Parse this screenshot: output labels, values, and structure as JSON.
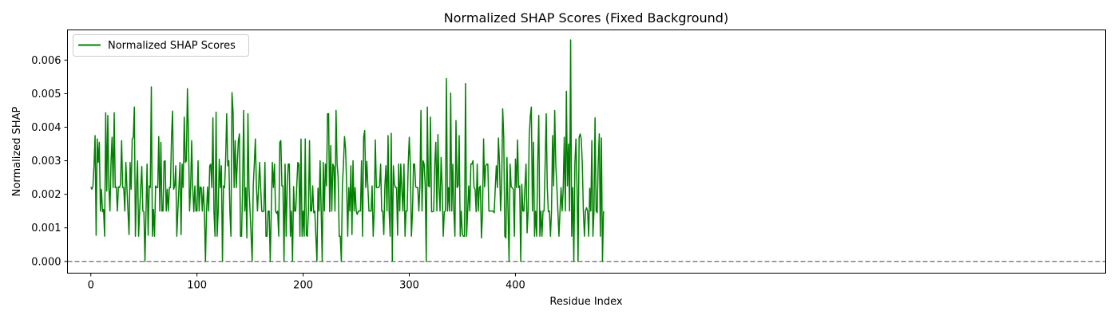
{
  "chart_data": {
    "type": "line",
    "title": "Normalized SHAP Scores (Fixed Background)",
    "xlabel": "Residue Index",
    "ylabel": "Normalized SHAP",
    "xlim": [
      -22,
      956
    ],
    "ylim": [
      -0.00035,
      0.0069
    ],
    "xticks": [
      0,
      100,
      200,
      300,
      400
    ],
    "xtick_labels": [
      "0",
      "100",
      "200",
      "300",
      "400"
    ],
    "yticks": [
      0.0,
      0.001,
      0.002,
      0.003,
      0.004,
      0.005,
      0.006
    ],
    "ytick_labels": [
      "0.000",
      "0.001",
      "0.002",
      "0.003",
      "0.004",
      "0.005",
      "0.006"
    ],
    "grid": false,
    "legend": {
      "position": "top-left",
      "entries": [
        "Normalized SHAP Scores"
      ]
    },
    "reference_line": {
      "y": 0.0,
      "style": "dashed",
      "color": "#808080"
    },
    "series": [
      {
        "name": "Normalized SHAP Scores",
        "color": "#008000",
        "x_start": 0,
        "values": [
          0.00222,
          0.00215,
          0.00225,
          0.00285,
          0.00375,
          0.00078,
          0.00365,
          0.00295,
          0.00355,
          0.0015,
          0.00215,
          0.00148,
          0.00155,
          0.00075,
          0.00443,
          0.0021,
          0.00435,
          0.00222,
          0.0015,
          0.00295,
          0.0037,
          0.0022,
          0.00443,
          0.0022,
          0.00222,
          0.0015,
          0.00222,
          0.0022,
          0.0023,
          0.0036,
          0.0022,
          0.0022,
          0.0015,
          0.00295,
          0.0022,
          0.0015,
          0.0008,
          0.00295,
          0.00215,
          0.00365,
          0.0037,
          0.0046,
          0.00075,
          0.0022,
          0.003,
          0.00075,
          0.0015,
          0.0022,
          0.00283,
          0.0015,
          0.00148,
          0.0,
          0.0015,
          0.0029,
          0.00078,
          0.00225,
          0.0022,
          0.0052,
          0.00075,
          0.00155,
          0.00075,
          0.00225,
          0.0022,
          0.0022,
          0.00372,
          0.0015,
          0.00355,
          0.0015,
          0.0015,
          0.00298,
          0.003,
          0.0015,
          0.00215,
          0.0015,
          0.0022,
          0.0022,
          0.0037,
          0.00448,
          0.00215,
          0.00225,
          0.00285,
          0.00075,
          0.0015,
          0.0022,
          0.00295,
          0.0008,
          0.0029,
          0.0022,
          0.0043,
          0.00295,
          0.003,
          0.00515,
          0.0037,
          0.0015,
          0.0022,
          0.0036,
          0.0022,
          0.00148,
          0.00225,
          0.0015,
          0.0015,
          0.003,
          0.0015,
          0.00222,
          0.0022,
          0.0015,
          0.00222,
          0.0015,
          0.0,
          0.0015,
          0.00222,
          0.0015,
          0.00285,
          0.0029,
          0.0022,
          0.00428,
          0.00148,
          0.00075,
          0.00445,
          0.00075,
          0.0015,
          0.00305,
          0.0022,
          0.00285,
          0.0,
          0.00225,
          0.0022,
          0.00305,
          0.0044,
          0.00285,
          0.003,
          0.0015,
          0.00075,
          0.00503,
          0.00445,
          0.0022,
          0.0036,
          0.0022,
          0.00295,
          0.0036,
          0.0038,
          0.00075,
          0.00075,
          0.00225,
          0.0045,
          0.0015,
          0.0022,
          0.0007,
          0.0044,
          0.0022,
          0.0015,
          0.00078,
          0.0,
          0.00225,
          0.0029,
          0.00365,
          0.00222,
          0.0015,
          0.0022,
          0.00295,
          0.0022,
          0.0015,
          0.00148,
          0.0015,
          0.00295,
          0.00075,
          0.00075,
          0.0015,
          0.0015,
          0.0,
          0.0015,
          0.00295,
          0.0022,
          0.0029,
          0.0015,
          0.00143,
          0.0015,
          0.00075,
          0.00355,
          0.0036,
          0.00225,
          0.00225,
          0.0,
          0.0029,
          0.00075,
          0.00225,
          0.0029,
          0.0029,
          0.00075,
          0.0015,
          0.0,
          0.00223,
          0.0015,
          0.0015,
          0.00225,
          0.00295,
          0.0029,
          0.00075,
          0.00365,
          0.00075,
          0.0015,
          0.00075,
          0.00365,
          0.00078,
          0.00075,
          0.0015,
          0.0036,
          0.0015,
          0.0015,
          0.00225,
          0.00145,
          0.0015,
          0.00075,
          0.0,
          0.00218,
          0.0015,
          0.003,
          0.0015,
          0.0,
          0.00295,
          0.0015,
          0.0029,
          0.00225,
          0.0044,
          0.0044,
          0.00148,
          0.00345,
          0.0015,
          0.0029,
          0.00282,
          0.0015,
          0.0045,
          0.0029,
          0.0025,
          0.00075,
          0.00075,
          0.0,
          0.00225,
          0.0029,
          0.00372,
          0.00335,
          0.00225,
          0.00075,
          0.0022,
          0.0015,
          0.00285,
          0.0008,
          0.003,
          0.0015,
          0.0022,
          0.0015,
          0.0014,
          0.0015,
          0.0015,
          0.0015,
          0.003,
          0.00075,
          0.0037,
          0.0039,
          0.0022,
          0.00298,
          0.00222,
          0.0015,
          0.0015,
          0.0015,
          0.00225,
          0.00075,
          0.0015,
          0.00362,
          0.0022,
          0.0022,
          0.0022,
          0.00225,
          0.0029,
          0.0015,
          0.0015,
          0.0008,
          0.00225,
          0.00285,
          0.0015,
          0.00375,
          0.0015,
          0.00075,
          0.00382,
          0.0,
          0.00285,
          0.0023,
          0.0022,
          0.0022,
          0.00078,
          0.0029,
          0.0015,
          0.0029,
          0.00215,
          0.0015,
          0.0029,
          0.00075,
          0.0015,
          0.0015,
          0.0029,
          0.0037,
          0.0029,
          0.00075,
          0.00145,
          0.0029,
          0.0029,
          0.00222,
          0.0022,
          0.0022,
          0.0015,
          0.00225,
          0.0045,
          0.0015,
          0.003,
          0.0029,
          0.00225,
          0.0,
          0.0046,
          0.00225,
          0.00222,
          0.0043,
          0.00148,
          0.00148,
          0.0015,
          0.0029,
          0.00355,
          0.0015,
          0.00378,
          0.0022,
          0.0015,
          0.0031,
          0.0022,
          0.00075,
          0.00148,
          0.0015,
          0.00545,
          0.0015,
          0.0022,
          0.0015,
          0.00502,
          0.0015,
          0.0029,
          0.0015,
          0.00075,
          0.0042,
          0.0022,
          0.00225,
          0.00375,
          0.00075,
          0.0015,
          0.0008,
          0.00075,
          0.00075,
          0.0053,
          0.00075,
          0.0015,
          0.00225,
          0.0015,
          0.0029,
          0.0029,
          0.003,
          0.0022,
          0.00215,
          0.00148,
          0.0029,
          0.0015,
          0.0022,
          0.00225,
          0.0007,
          0.00145,
          0.00365,
          0.00222,
          0.00285,
          0.0029,
          0.0029,
          0.0015,
          0.0015,
          0.0015,
          0.0015,
          0.0015,
          0.00145,
          0.0022,
          0.00285,
          0.0022,
          0.00368,
          0.0029,
          0.0015,
          0.0022,
          0.00455,
          0.0037,
          0.00075,
          0.0007,
          0.0031,
          0.0015,
          0.0,
          0.0029,
          0.00222,
          0.0022,
          0.00215,
          0.00075,
          0.00305,
          0.0022,
          0.00362,
          0.0022,
          0.00225,
          0.0,
          0.0023,
          0.0015,
          0.0015,
          0.00225,
          0.0029,
          0.00085,
          0.0015,
          0.0037,
          0.00432,
          0.0046,
          0.0015,
          0.00355,
          0.00075,
          0.0015,
          0.00075,
          0.00295,
          0.00435,
          0.00075,
          0.0015,
          0.00075,
          0.0015,
          0.0015,
          0.0029,
          0.0044,
          0.0022,
          0.00148,
          0.0015,
          0.00075,
          0.0015,
          0.00375,
          0.00225,
          0.0045,
          0.0029,
          0.00225,
          0.0015,
          0.00075,
          0.0015,
          0.0022,
          0.0015,
          0.00215,
          0.0037,
          0.0015,
          0.00507,
          0.00225,
          0.0035,
          0.0015,
          0.0066,
          0.00075,
          0.0022,
          0.0,
          0.0029,
          0.00365,
          0.00225,
          0.0,
          0.0037,
          0.0038,
          0.00365,
          0.0029,
          0.0015,
          0.00075,
          0.0015,
          0.0016,
          0.0015,
          0.00075,
          0.00218,
          0.0015,
          0.0036,
          0.00075,
          0.0015,
          0.00428,
          0.0015,
          0.00145,
          0.00295,
          0.0038,
          0.00075,
          0.00368,
          0.0,
          0.0015
        ]
      }
    ]
  }
}
